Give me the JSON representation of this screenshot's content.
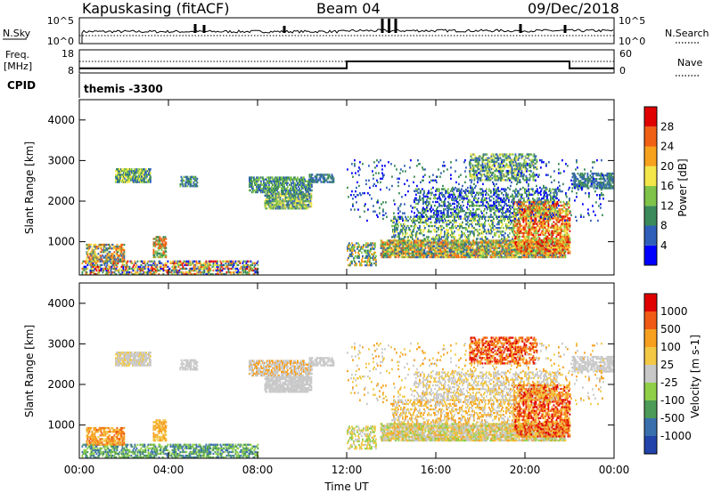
{
  "header": {
    "station": "Kapuskasing (fitACF)",
    "beam": "Beam 04",
    "date": "09/Dec/2018"
  },
  "chart_data": [
    {
      "type": "line",
      "title": "N.Sky / N.Search",
      "ylabel": "N.Sky",
      "ylabel_right": "N.Search",
      "y_ticks": [
        "10^5",
        "10^0"
      ],
      "scale": "log",
      "x": [
        "00:00",
        "24:00"
      ],
      "series": [
        {
          "name": "N.Sky",
          "baseline_level": "low, noisy",
          "spikes_at_hours": [
            5.2,
            5.6,
            9.2,
            13.6,
            13.9,
            14.2,
            19.8,
            21.8
          ]
        },
        {
          "name": "N.Search",
          "style": "dotted",
          "level": "near 10^1"
        }
      ]
    },
    {
      "type": "line",
      "ylabel": "Freq.",
      "unit": "[MHz]",
      "ylim": [
        8,
        18
      ],
      "y_ticks_left": [
        "18",
        "8"
      ],
      "y_ticks_right": [
        "60",
        "0"
      ],
      "ylabel_right": "Nave",
      "series": [
        {
          "name": "Freq",
          "segments": [
            {
              "from": 0,
              "to": 12,
              "value": 10
            },
            {
              "from": 12,
              "to": 22,
              "value": 13
            },
            {
              "from": 22,
              "to": 24,
              "value": 10
            }
          ]
        },
        {
          "name": "Nave",
          "style": "dotted",
          "value": 33
        }
      ]
    },
    {
      "type": "table",
      "ylabel": "CPID",
      "text": "themis -3300"
    },
    {
      "type": "heatmap",
      "ylabel": "Slant Range [km]",
      "ylim": [
        180,
        4500
      ],
      "y_ticks": [
        1000,
        2000,
        3000,
        4000
      ],
      "xlim": [
        "00:00",
        "24:00"
      ],
      "colorbar": {
        "label": "Power [dB]",
        "ticks": [
          4,
          8,
          12,
          16,
          20,
          24,
          28
        ]
      }
    },
    {
      "type": "heatmap",
      "ylabel": "Slant Range [km]",
      "xlabel": "Time UT",
      "ylim": [
        180,
        4500
      ],
      "y_ticks": [
        1000,
        2000,
        3000,
        4000
      ],
      "x_ticks": [
        "00:00",
        "04:00",
        "08:00",
        "12:00",
        "16:00",
        "20:00",
        "00:00"
      ],
      "colorbar": {
        "label": "Velocity [m s-1]",
        "ticks": [
          1000,
          500,
          100,
          25,
          -25,
          -100,
          -500,
          -1000
        ]
      }
    }
  ],
  "colors": {
    "power": [
      "#0000ff",
      "#2f5fb8",
      "#3b8a5a",
      "#7fc34a",
      "#f2e64a",
      "#f7a21c",
      "#f06015",
      "#e00000"
    ],
    "velocity": [
      "#2244aa",
      "#3a6fae",
      "#4c9b58",
      "#8fcf48",
      "#c8c8c8",
      "#f2c844",
      "#f7a020",
      "#f05a14",
      "#e00000"
    ]
  }
}
